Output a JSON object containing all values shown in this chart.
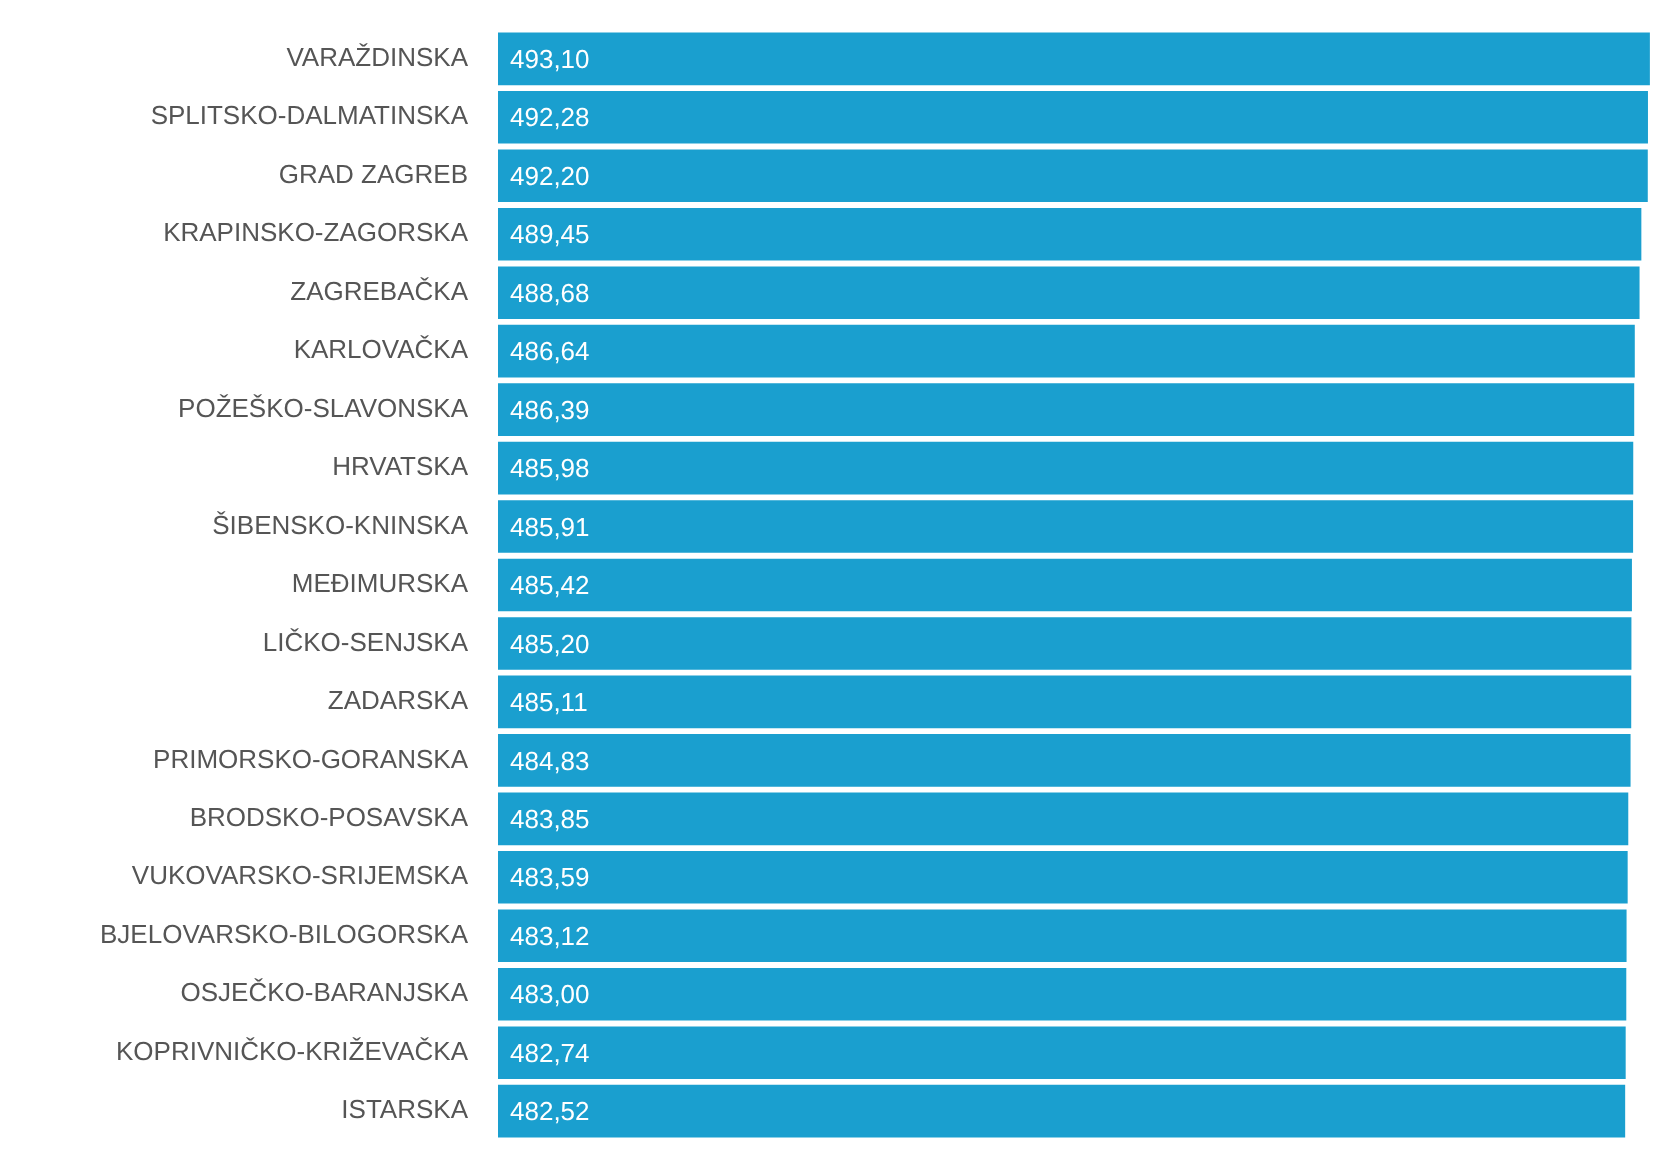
{
  "chart_data": {
    "type": "bar",
    "orientation": "horizontal",
    "categories": [
      "VARAŽDINSKA",
      "SPLITSKO-DALMATINSKA",
      "GRAD ZAGREB",
      "KRAPINSKO-ZAGORSKA",
      "ZAGREBAČKA",
      "KARLOVAČKA",
      "POŽEŠKO-SLAVONSKA",
      "HRVATSKA",
      "ŠIBENSKO-KNINSKA",
      "MEĐIMURSKA",
      "LIČKO-SENJSKA",
      "ZADARSKA",
      "PRIMORSKO-GORANSKA",
      "BRODSKO-POSAVSKA",
      "VUKOVARSKO-SRIJEMSKA",
      "BJELOVARSKO-BILOGORSKA",
      "OSJEČKO-BARANJSKA",
      "KOPRIVNIČKO-KRIŽEVAČKA",
      "ISTARSKA"
    ],
    "values": [
      493.1,
      492.28,
      492.2,
      489.45,
      488.68,
      486.64,
      486.39,
      485.98,
      485.91,
      485.42,
      485.2,
      485.11,
      484.83,
      483.85,
      483.59,
      483.12,
      483.0,
      482.74,
      482.52
    ],
    "value_labels": [
      "493,10",
      "492,28",
      "492,20",
      "489,45",
      "488,68",
      "486,64",
      "486,39",
      "485,98",
      "485,91",
      "485,42",
      "485,20",
      "485,11",
      "484,83",
      "483,85",
      "483,59",
      "483,12",
      "483,00",
      "482,74",
      "482,52"
    ],
    "color": "#1a9fcf",
    "tick_labels": "y",
    "legend": false,
    "grid": false
  }
}
